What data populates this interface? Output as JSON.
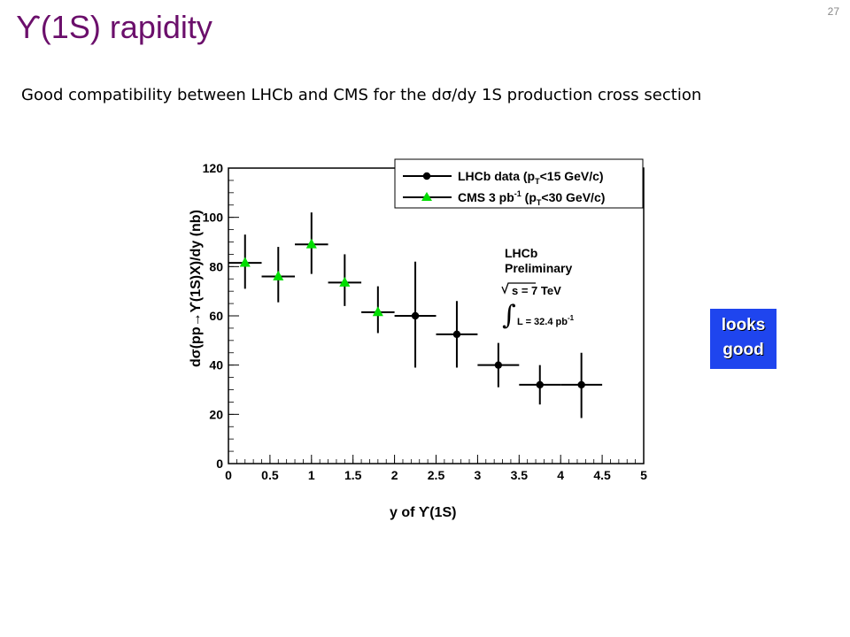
{
  "slide": {
    "title": "ϒ(1S) rapidity",
    "number": "27",
    "subtitle": "Good compatibility between LHCb and CMS for the dσ/dy 1S production cross section",
    "callout_line1": "looks",
    "callout_line2": "good",
    "callout_color": "#1f45ee",
    "title_color": "#6b0f6b"
  },
  "chart_data": {
    "type": "scatter",
    "xlabel": "y of ϒ(1S)",
    "ylabel": "dσ(pp→ϒ(1S)X)/dy (nb)",
    "xlim": [
      0,
      5
    ],
    "ylim": [
      0,
      120
    ],
    "x_ticks": [
      "0",
      "0.5",
      "1",
      "1.5",
      "2",
      "2.5",
      "3",
      "3.5",
      "4",
      "4.5",
      "5"
    ],
    "y_ticks": [
      "0",
      "20",
      "40",
      "60",
      "80",
      "100",
      "120"
    ],
    "grid": false,
    "legend_position": "top-right",
    "legend": [
      {
        "label": "LHCb data (p",
        "sub": "T",
        "tail": "<15 GeV/c)"
      },
      {
        "label": "CMS 3 pb",
        "sup": "-1",
        "mid": " (p",
        "sub": "T",
        "tail": "<30 GeV/c)"
      }
    ],
    "annotation": {
      "line1": "LHCb",
      "line2": "Preliminary",
      "energy": "s = 7 TeV",
      "lumi": "L = 32.4 pb",
      "lumi_sup": "-1"
    },
    "series": [
      {
        "name": "LHCb data",
        "marker": "circle",
        "color": "#000000",
        "points": [
          {
            "x": 2.25,
            "y": 60,
            "xerr": 0.25,
            "ylow": 39,
            "yhigh": 82
          },
          {
            "x": 2.75,
            "y": 52.5,
            "xerr": 0.25,
            "ylow": 39,
            "yhigh": 66
          },
          {
            "x": 3.25,
            "y": 40,
            "xerr": 0.25,
            "ylow": 31,
            "yhigh": 49
          },
          {
            "x": 3.75,
            "y": 32,
            "xerr": 0.25,
            "ylow": 24,
            "yhigh": 40
          },
          {
            "x": 4.25,
            "y": 32,
            "xerr": 0.25,
            "ylow": 18.5,
            "yhigh": 45
          }
        ]
      },
      {
        "name": "CMS 3 pb-1",
        "marker": "triangle",
        "color": "#00dd00",
        "points": [
          {
            "x": 0.2,
            "y": 81.5,
            "xerr": 0.2,
            "ylow": 71,
            "yhigh": 93
          },
          {
            "x": 0.6,
            "y": 76,
            "xerr": 0.2,
            "ylow": 65.5,
            "yhigh": 88
          },
          {
            "x": 1.0,
            "y": 89,
            "xerr": 0.2,
            "ylow": 77,
            "yhigh": 102
          },
          {
            "x": 1.4,
            "y": 73.5,
            "xerr": 0.2,
            "ylow": 64,
            "yhigh": 85
          },
          {
            "x": 1.8,
            "y": 61.5,
            "xerr": 0.2,
            "ylow": 53,
            "yhigh": 72
          }
        ]
      }
    ]
  }
}
